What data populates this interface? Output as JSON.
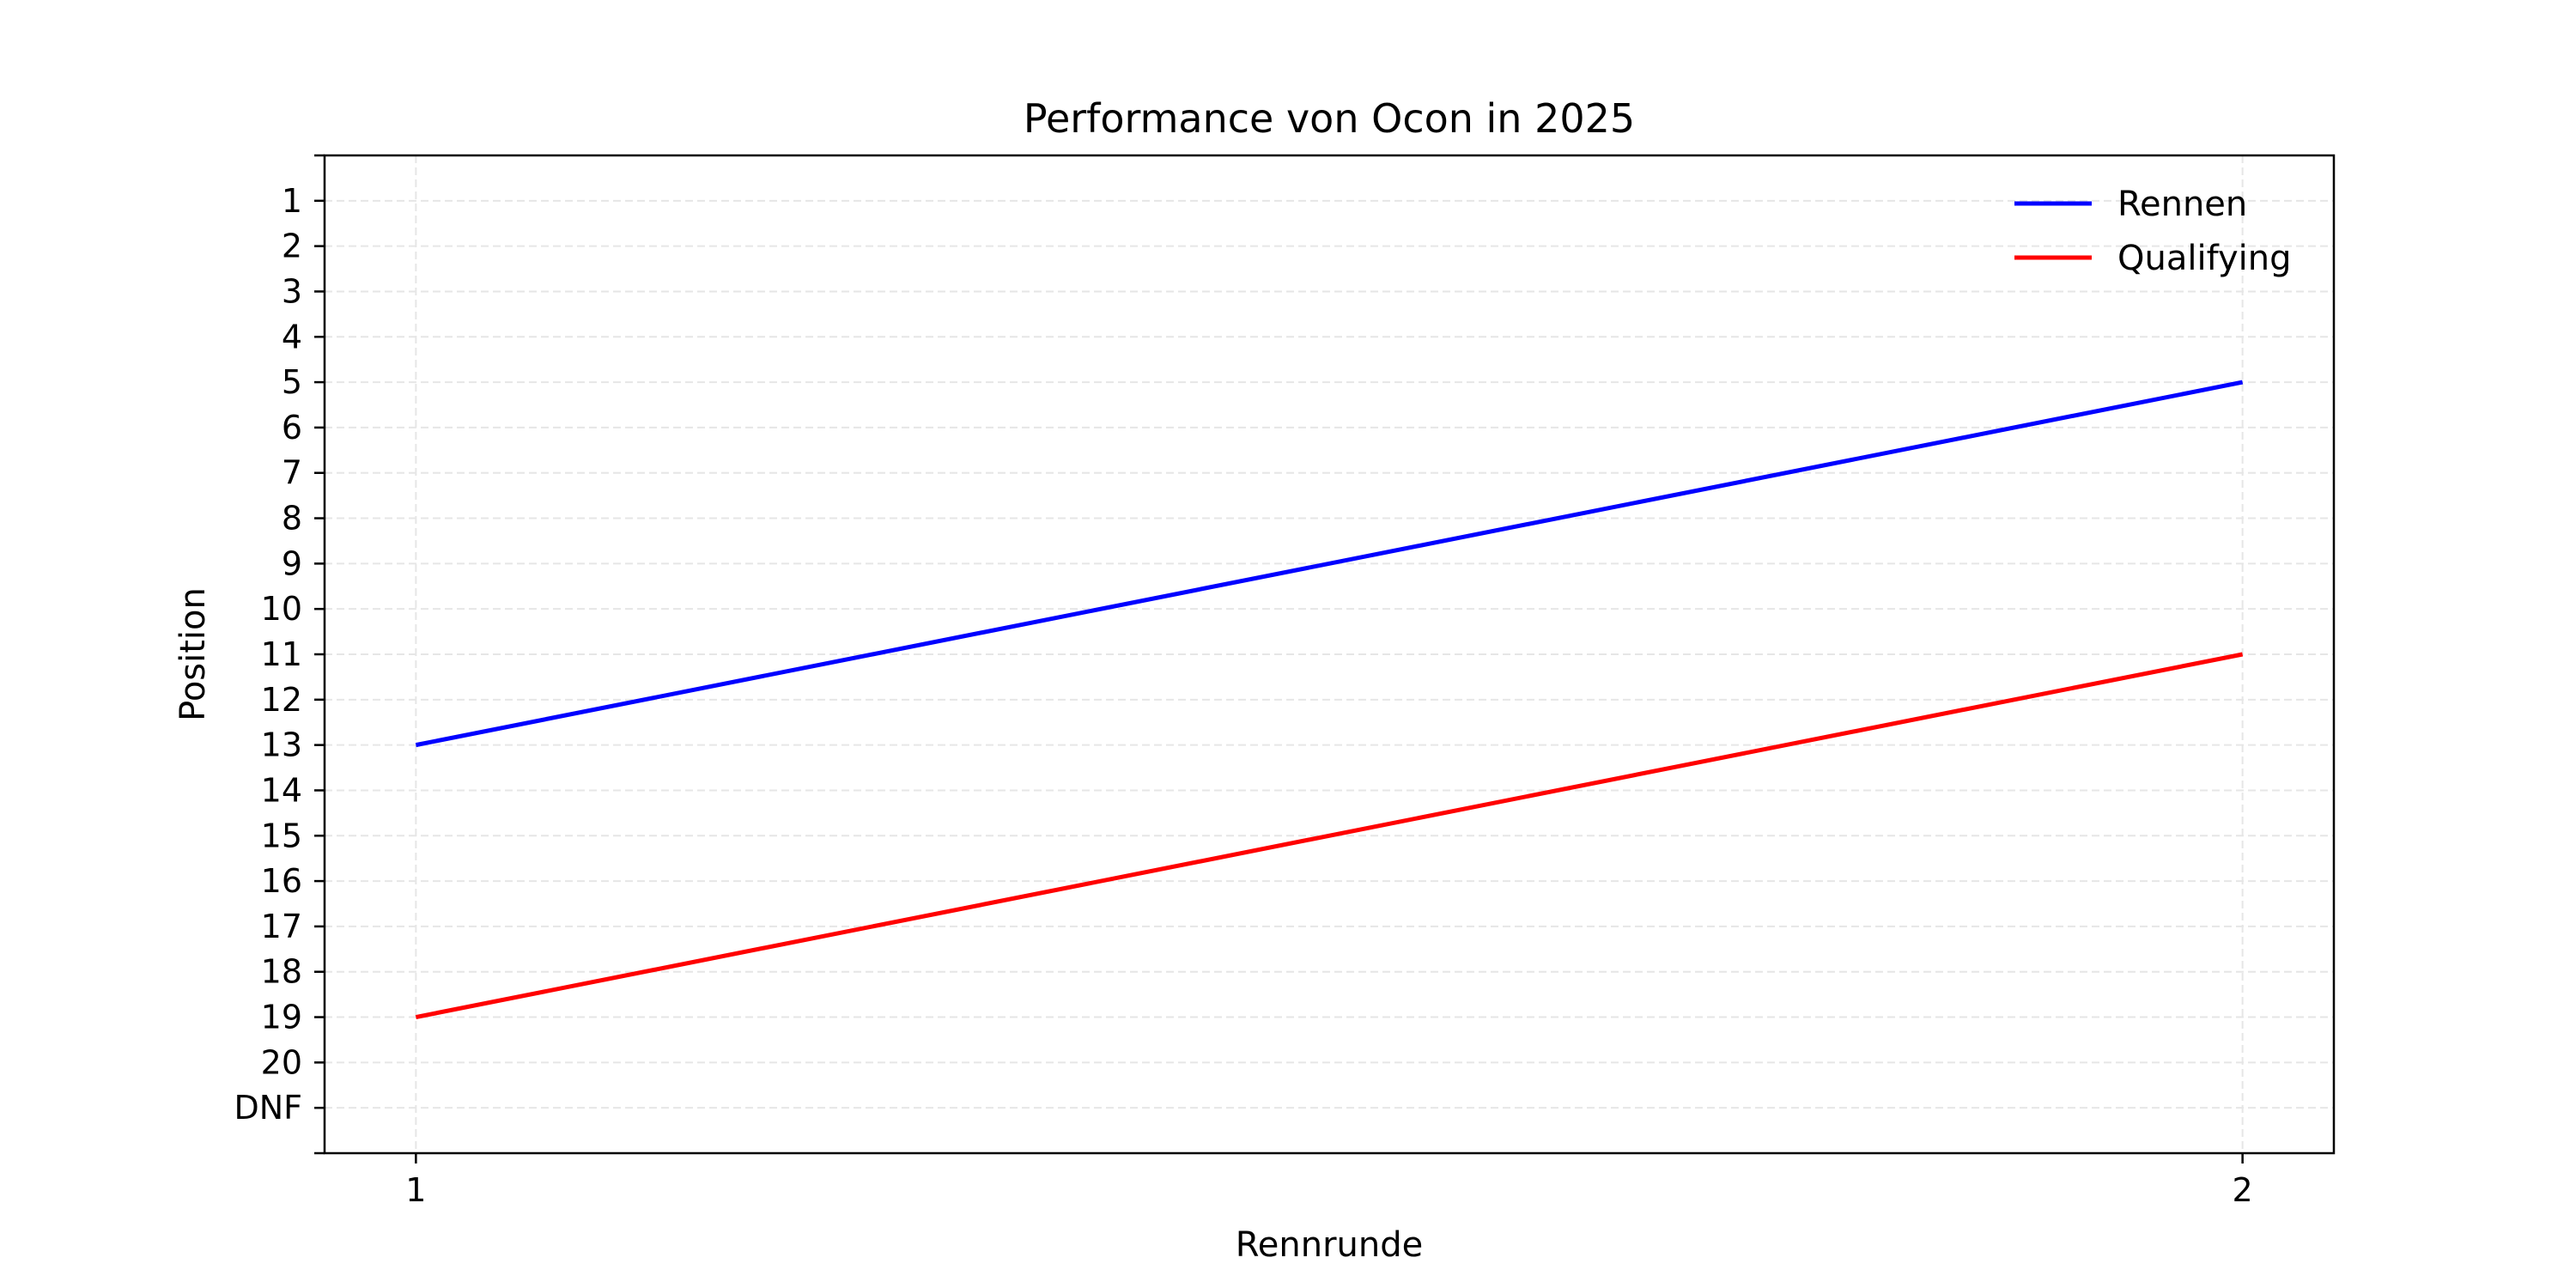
{
  "chart_data": {
    "type": "line",
    "title": "Performance von Ocon in 2025",
    "xlabel": "Rennrunde",
    "ylabel": "Position",
    "x": [
      1,
      2
    ],
    "x_ticks": [
      "1",
      "2"
    ],
    "y_ticks": [
      "1",
      "2",
      "3",
      "4",
      "5",
      "6",
      "7",
      "8",
      "9",
      "10",
      "11",
      "12",
      "13",
      "14",
      "15",
      "16",
      "17",
      "18",
      "19",
      "20",
      "DNF"
    ],
    "y_inverted": true,
    "ylim": [
      22,
      0
    ],
    "xlim": [
      0.95,
      2.05
    ],
    "grid": true,
    "legend_position": "top-right",
    "series": [
      {
        "name": "Rennen",
        "color": "#0000ff",
        "values": [
          13,
          5
        ]
      },
      {
        "name": "Qualifying",
        "color": "#ff0000",
        "values": [
          19,
          11
        ]
      }
    ]
  }
}
